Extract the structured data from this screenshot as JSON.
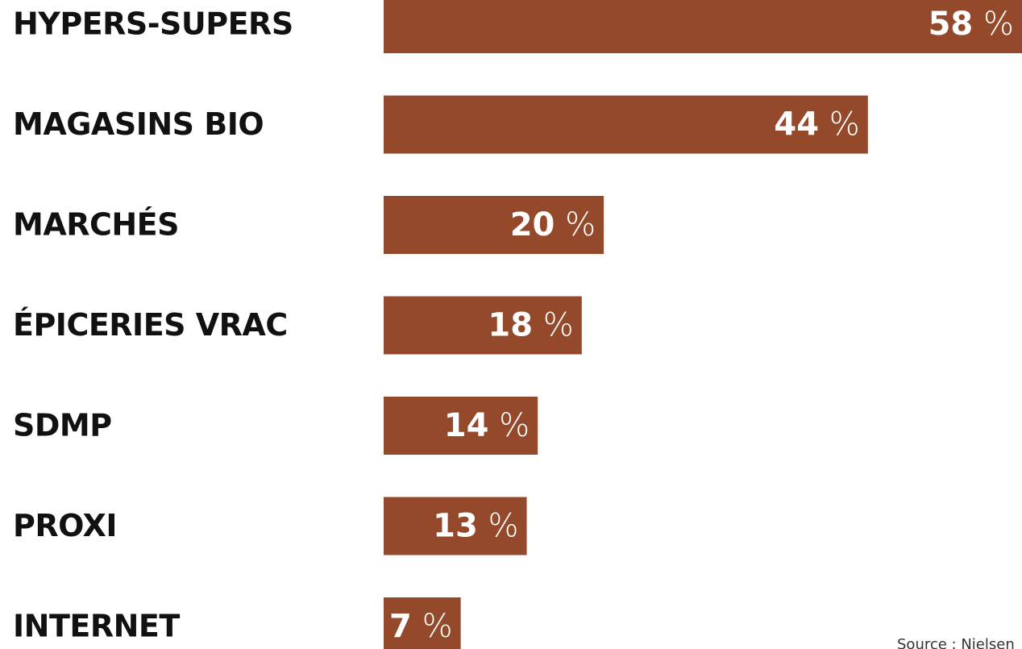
{
  "chart_data": {
    "type": "bar",
    "orientation": "horizontal",
    "categories": [
      "HYPERS-SUPERS",
      "MAGASINS BIO",
      "MARCHÉS",
      "ÉPICERIES VRAC",
      "SDMP",
      "PROXI",
      "INTERNET"
    ],
    "values": [
      58,
      44,
      20,
      18,
      14,
      13,
      7
    ],
    "unit": "%",
    "color": "#93492a",
    "xlim": [
      0,
      58
    ],
    "source": "Source : Nielsen"
  }
}
